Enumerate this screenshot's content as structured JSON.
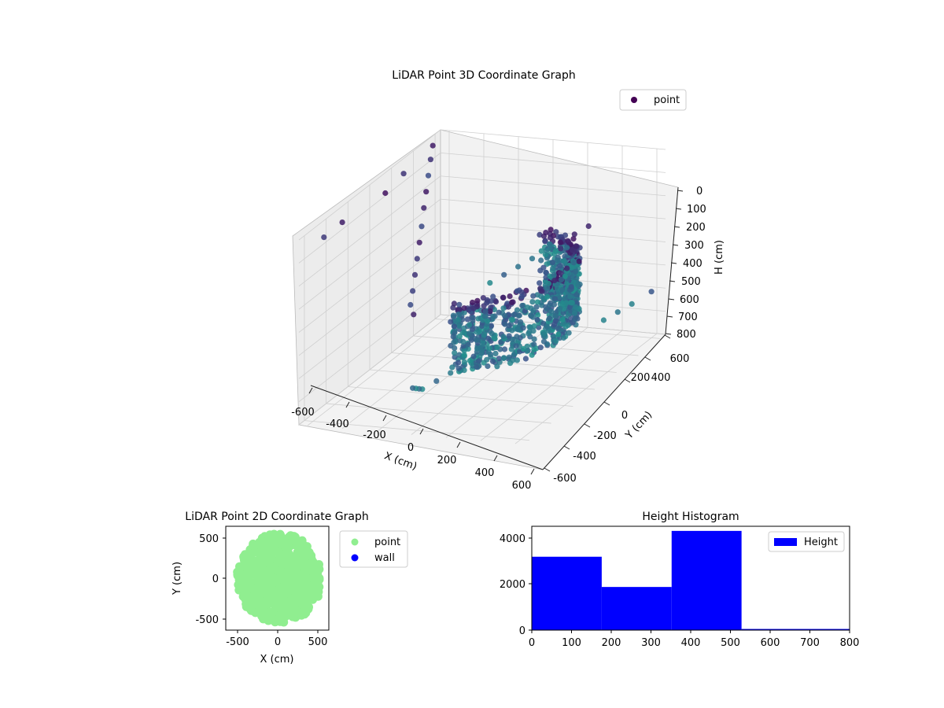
{
  "chart_data": [
    {
      "type": "scatter",
      "title": "LiDAR Point 3D Coordinate Graph",
      "projection": "3d",
      "xlabel": "X (cm)",
      "ylabel": "Y (cm)",
      "zlabel": "H (cm)",
      "x_ticks": [
        "-600",
        "-400",
        "-200",
        "0",
        "200",
        "400",
        "600"
      ],
      "y_ticks": [
        "-600",
        "-400",
        "-200",
        "0",
        "200",
        "400",
        "600"
      ],
      "z_ticks": [
        "0",
        "100",
        "200",
        "300",
        "400",
        "500",
        "600",
        "700",
        "800"
      ],
      "xlim": [
        -650,
        650
      ],
      "ylim": [
        -650,
        650
      ],
      "zlim": [
        800,
        0
      ],
      "z_axis_inverted": true,
      "colormap": "viridis",
      "legend": [
        "point"
      ],
      "legend_position": "top-right",
      "grid": true,
      "series": [
        {
          "name": "point",
          "description": "dense curved shell of points, color by height (viridis)",
          "points": [
            [
              -600,
              500,
              10
            ],
            [
              -550,
              400,
              30
            ],
            [
              -500,
              300,
              60
            ],
            [
              -450,
              200,
              90
            ],
            [
              -400,
              100,
              120
            ],
            [
              -350,
              0,
              160
            ],
            [
              -300,
              -100,
              190
            ],
            [
              -250,
              -200,
              220
            ],
            [
              -200,
              -300,
              250
            ],
            [
              -150,
              -400,
              280
            ],
            [
              -100,
              -500,
              300
            ],
            [
              -50,
              -550,
              320
            ],
            [
              -620,
              -300,
              50
            ],
            [
              -600,
              -500,
              40
            ],
            [
              -580,
              200,
              20
            ],
            [
              -560,
              0,
              30
            ],
            [
              600,
              600,
              600
            ],
            [
              550,
              500,
              620
            ],
            [
              500,
              450,
              640
            ],
            [
              450,
              400,
              660
            ],
            [
              300,
              500,
              300
            ],
            [
              250,
              450,
              320
            ],
            [
              200,
              400,
              340
            ],
            [
              150,
              350,
              360
            ],
            [
              100,
              300,
              380
            ],
            [
              50,
              250,
              400
            ],
            [
              0,
              200,
              420
            ],
            [
              -50,
              150,
              440
            ],
            [
              350,
              300,
              420
            ],
            [
              300,
              250,
              440
            ],
            [
              250,
              200,
              460
            ],
            [
              200,
              150,
              480
            ],
            [
              400,
              0,
              480
            ],
            [
              350,
              -50,
              500
            ],
            [
              300,
              -100,
              520
            ],
            [
              250,
              -150,
              540
            ],
            [
              200,
              -250,
              560
            ],
            [
              150,
              -350,
              580
            ],
            [
              100,
              -450,
              600
            ],
            [
              50,
              -500,
              620
            ],
            [
              0,
              -550,
              640
            ],
            [
              -50,
              -500,
              660
            ],
            [
              -100,
              -450,
              680
            ],
            [
              -150,
              -400,
              700
            ]
          ]
        }
      ]
    },
    {
      "type": "scatter",
      "title": "LiDAR Point 2D Coordinate Graph",
      "xlabel": "X (cm)",
      "ylabel": "Y (cm)",
      "x_ticks": [
        "-500",
        "0",
        "500"
      ],
      "y_ticks": [
        "500",
        "0",
        "-500"
      ],
      "xlim": [
        -620,
        620
      ],
      "ylim": [
        -620,
        620
      ],
      "legend_position": "outside-right",
      "series": [
        {
          "name": "point",
          "color": "#90ee90"
        },
        {
          "name": "wall",
          "color": "#0000ff",
          "values": []
        }
      ]
    },
    {
      "type": "bar",
      "title": "Height Histogram",
      "xlabel": "",
      "ylabel": "",
      "x_ticks": [
        "0",
        "100",
        "200",
        "300",
        "400",
        "500",
        "600",
        "700",
        "800"
      ],
      "y_ticks": [
        "0",
        "2000",
        "4000"
      ],
      "xlim": [
        0,
        800
      ],
      "ylim": [
        0,
        4500
      ],
      "legend_position": "top-right",
      "series": [
        {
          "name": "Height",
          "color": "#0000ff",
          "bins": [
            [
              0,
              176
            ],
            [
              176,
              352
            ],
            [
              352,
              528
            ],
            [
              528,
              704
            ],
            [
              704,
              880
            ]
          ],
          "values": [
            3180,
            1870,
            4300,
            50,
            50
          ]
        }
      ]
    }
  ]
}
